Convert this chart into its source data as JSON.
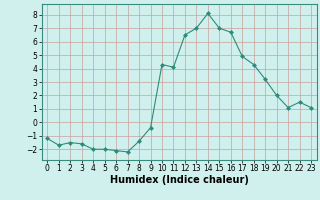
{
  "x": [
    0,
    1,
    2,
    3,
    4,
    5,
    6,
    7,
    8,
    9,
    10,
    11,
    12,
    13,
    14,
    15,
    16,
    17,
    18,
    19,
    20,
    21,
    22,
    23
  ],
  "y": [
    -1.2,
    -1.7,
    -1.5,
    -1.6,
    -2.0,
    -2.0,
    -2.1,
    -2.2,
    -1.4,
    -0.4,
    4.3,
    4.1,
    6.5,
    7.0,
    8.1,
    7.0,
    6.7,
    4.9,
    4.3,
    3.2,
    2.0,
    1.1,
    1.5,
    1.1
  ],
  "line_color": "#2e8b7a",
  "marker": "D",
  "marker_size": 2,
  "bg_color": "#cff0ec",
  "grid_color": "#b0d8d0",
  "xlabel": "Humidex (Indice chaleur)",
  "xlim": [
    -0.5,
    23.5
  ],
  "ylim": [
    -2.8,
    8.8
  ],
  "yticks": [
    -2,
    -1,
    0,
    1,
    2,
    3,
    4,
    5,
    6,
    7,
    8
  ],
  "xticks": [
    0,
    1,
    2,
    3,
    4,
    5,
    6,
    7,
    8,
    9,
    10,
    11,
    12,
    13,
    14,
    15,
    16,
    17,
    18,
    19,
    20,
    21,
    22,
    23
  ],
  "tick_fontsize": 5.5,
  "xlabel_fontsize": 7.0,
  "spine_color": "#3a8a80"
}
